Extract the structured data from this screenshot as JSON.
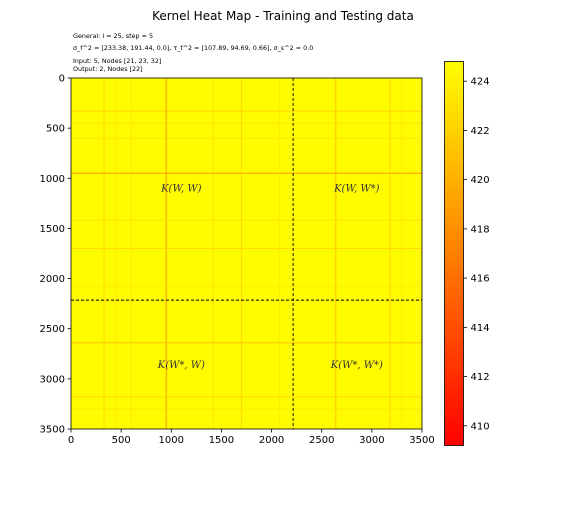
{
  "chart_data": {
    "type": "heatmap",
    "title": "Kernel Heat Map - Training and Testing data",
    "info_lines": [
      "General: l = 25, step = 5",
      "σ_f^2 = [233.38, 191.44, 0.0], τ_f^2 = [107.89, 94.69, 0.66], σ_ε^2 = 0.0",
      "Input: 5, Nodes [21, 23, 32]",
      "Output: 2, Nodes [22]"
    ],
    "xlim": [
      0,
      3500
    ],
    "ylim": [
      3500,
      0
    ],
    "x_ticks": [
      0,
      500,
      1000,
      1500,
      2000,
      2500,
      3000,
      3500
    ],
    "y_ticks": [
      0,
      500,
      1000,
      1500,
      2000,
      2500,
      3000,
      3500
    ],
    "split": 2215,
    "quadrant_labels": [
      {
        "text": "K(W, W)",
        "x": 1100,
        "y": 1100
      },
      {
        "text": "K(W, W*)",
        "x": 2850,
        "y": 1100
      },
      {
        "text": "K(W*, W)",
        "x": 1100,
        "y": 2860
      },
      {
        "text": "K(W*, W*)",
        "x": 2850,
        "y": 2860
      }
    ],
    "colorbar": {
      "min": 409.2,
      "max": 424.8,
      "ticks": [
        410,
        412,
        414,
        416,
        418,
        420,
        422,
        424
      ],
      "colormap": "autumn",
      "low_color": "#ff0000",
      "high_color": "#ffff00"
    },
    "baseline_value": 424.6,
    "dips": [
      {
        "pos": 330,
        "width": 10,
        "value": 421.5
      },
      {
        "pos": 450,
        "width": 8,
        "value": 422.5
      },
      {
        "pos": 600,
        "width": 10,
        "value": 423.0
      },
      {
        "pos": 950,
        "width": 14,
        "value": 419.0
      },
      {
        "pos": 1420,
        "width": 10,
        "value": 422.5
      },
      {
        "pos": 1700,
        "width": 10,
        "value": 422.0
      },
      {
        "pos": 2080,
        "width": 8,
        "value": 423.2
      },
      {
        "pos": 2640,
        "width": 12,
        "value": 420.5
      },
      {
        "pos": 3180,
        "width": 10,
        "value": 421.5
      },
      {
        "pos": 3300,
        "width": 8,
        "value": 423.0
      }
    ]
  }
}
